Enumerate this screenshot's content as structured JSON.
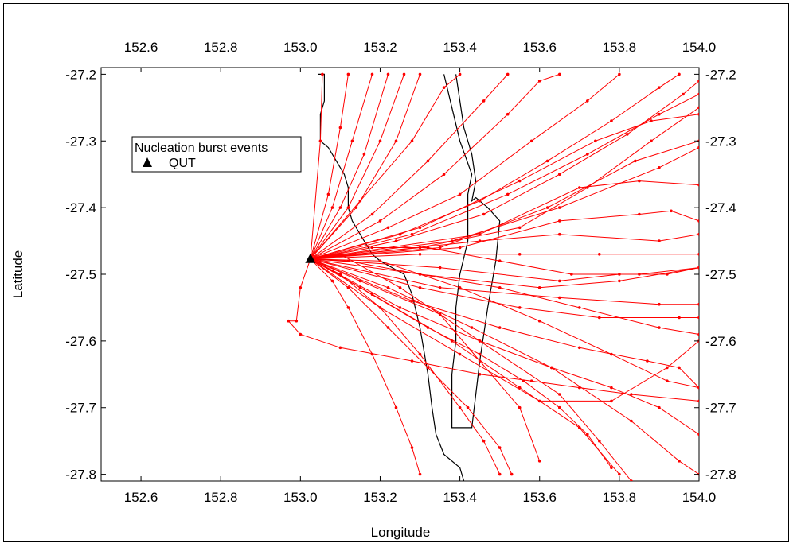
{
  "chart_data": {
    "type": "scatter",
    "xlabel": "Longitude",
    "ylabel": "Latitude",
    "xlim": [
      152.5,
      154.0
    ],
    "ylim": [
      -27.81,
      -27.19
    ],
    "x_ticks": [
      "152.6",
      "152.8",
      "153.0",
      "153.2",
      "153.4",
      "153.6",
      "153.8",
      "154.0"
    ],
    "y_ticks": [
      "-27.2",
      "-27.3",
      "-27.4",
      "-27.5",
      "-27.6",
      "-27.7",
      "-27.8"
    ],
    "x_tick_values": [
      152.6,
      152.8,
      153.0,
      153.2,
      153.4,
      153.6,
      153.8,
      154.0
    ],
    "y_tick_values": [
      -27.2,
      -27.3,
      -27.4,
      -27.5,
      -27.6,
      -27.7,
      -27.8
    ],
    "grid": false,
    "legend": {
      "title": "Nucleation burst events",
      "placement": "top-left",
      "entries": [
        {
          "label": "QUT",
          "marker": "triangle",
          "color": "#000000"
        }
      ]
    },
    "site": {
      "name": "QUT",
      "x": 153.025,
      "y": -27.477
    },
    "colors": {
      "trajectory": "#ff0000",
      "coastline": "#000000",
      "site": "#000000"
    },
    "coastline": [
      [
        [
          153.045,
          -27.2
        ],
        [
          153.06,
          -27.2
        ],
        [
          153.06,
          -27.24
        ],
        [
          153.05,
          -27.26
        ],
        [
          153.05,
          -27.3
        ],
        [
          153.07,
          -27.31
        ],
        [
          153.09,
          -27.33
        ],
        [
          153.11,
          -27.35
        ],
        [
          153.12,
          -27.37
        ],
        [
          153.12,
          -27.4
        ],
        [
          153.13,
          -27.42
        ],
        [
          153.14,
          -27.43
        ],
        [
          153.16,
          -27.45
        ],
        [
          153.18,
          -27.47
        ],
        [
          153.2,
          -27.48
        ],
        [
          153.23,
          -27.49
        ],
        [
          153.26,
          -27.5
        ],
        [
          153.28,
          -27.53
        ],
        [
          153.3,
          -27.58
        ],
        [
          153.32,
          -27.65
        ],
        [
          153.33,
          -27.7
        ],
        [
          153.34,
          -27.74
        ],
        [
          153.36,
          -27.77
        ],
        [
          153.4,
          -27.79
        ],
        [
          153.41,
          -27.81
        ]
      ],
      [
        [
          153.36,
          -27.2
        ],
        [
          153.38,
          -27.25
        ],
        [
          153.4,
          -27.3
        ],
        [
          153.43,
          -27.35
        ],
        [
          153.42,
          -27.38
        ],
        [
          153.42,
          -27.45
        ],
        [
          153.4,
          -27.5
        ],
        [
          153.39,
          -27.55
        ],
        [
          153.39,
          -27.6
        ],
        [
          153.38,
          -27.65
        ],
        [
          153.38,
          -27.7
        ],
        [
          153.38,
          -27.73
        ],
        [
          153.43,
          -27.73
        ],
        [
          153.44,
          -27.68
        ],
        [
          153.45,
          -27.63
        ],
        [
          153.47,
          -27.55
        ],
        [
          153.49,
          -27.48
        ],
        [
          153.5,
          -27.42
        ],
        [
          153.47,
          -27.4
        ],
        [
          153.45,
          -27.39
        ],
        [
          153.44,
          -27.385
        ],
        [
          153.43,
          -27.39
        ],
        [
          153.44,
          -27.36
        ],
        [
          153.43,
          -27.32
        ],
        [
          153.41,
          -27.28
        ],
        [
          153.4,
          -27.24
        ],
        [
          153.39,
          -27.2
        ]
      ]
    ],
    "trajectories": [
      [
        [
          153.025,
          -27.477
        ],
        [
          153.05,
          -27.3
        ],
        [
          153.055,
          -27.2
        ]
      ],
      [
        [
          153.025,
          -27.477
        ],
        [
          153.07,
          -27.38
        ],
        [
          153.1,
          -27.28
        ],
        [
          153.12,
          -27.2
        ]
      ],
      [
        [
          153.025,
          -27.477
        ],
        [
          153.08,
          -27.4
        ],
        [
          153.13,
          -27.3
        ],
        [
          153.18,
          -27.2
        ]
      ],
      [
        [
          153.025,
          -27.477
        ],
        [
          153.1,
          -27.4
        ],
        [
          153.16,
          -27.32
        ],
        [
          153.22,
          -27.2
        ]
      ],
      [
        [
          153.025,
          -27.477
        ],
        [
          153.12,
          -27.4
        ],
        [
          153.2,
          -27.3
        ],
        [
          153.26,
          -27.2
        ]
      ],
      [
        [
          153.025,
          -27.477
        ],
        [
          153.14,
          -27.4
        ],
        [
          153.24,
          -27.3
        ],
        [
          153.3,
          -27.2
        ]
      ],
      [
        [
          153.025,
          -27.477
        ],
        [
          153.15,
          -27.39
        ],
        [
          153.28,
          -27.3
        ],
        [
          153.36,
          -27.22
        ],
        [
          153.4,
          -27.2
        ]
      ],
      [
        [
          153.025,
          -27.477
        ],
        [
          153.18,
          -27.41
        ],
        [
          153.32,
          -27.33
        ],
        [
          153.46,
          -27.24
        ],
        [
          153.52,
          -27.2
        ]
      ],
      [
        [
          153.025,
          -27.477
        ],
        [
          153.2,
          -27.42
        ],
        [
          153.36,
          -27.35
        ],
        [
          153.52,
          -27.26
        ],
        [
          153.6,
          -27.21
        ],
        [
          153.65,
          -27.2
        ]
      ],
      [
        [
          153.025,
          -27.477
        ],
        [
          153.22,
          -27.43
        ],
        [
          153.4,
          -27.38
        ],
        [
          153.58,
          -27.3
        ],
        [
          153.72,
          -27.24
        ],
        [
          153.8,
          -27.2
        ]
      ],
      [
        [
          153.025,
          -27.477
        ],
        [
          153.25,
          -27.44
        ],
        [
          153.45,
          -27.39
        ],
        [
          153.62,
          -27.33
        ],
        [
          153.78,
          -27.27
        ],
        [
          153.9,
          -27.22
        ],
        [
          153.95,
          -27.2
        ]
      ],
      [
        [
          153.025,
          -27.477
        ],
        [
          153.24,
          -27.45
        ],
        [
          153.46,
          -27.41
        ],
        [
          153.65,
          -27.35
        ],
        [
          153.82,
          -27.29
        ],
        [
          153.96,
          -27.23
        ],
        [
          154.0,
          -27.21
        ]
      ],
      [
        [
          153.025,
          -27.477
        ],
        [
          153.28,
          -27.44
        ],
        [
          153.52,
          -27.38
        ],
        [
          153.72,
          -27.32
        ],
        [
          153.9,
          -27.26
        ],
        [
          154.0,
          -27.23
        ]
      ],
      [
        [
          153.025,
          -27.477
        ],
        [
          153.3,
          -27.46
        ],
        [
          153.55,
          -27.43
        ],
        [
          153.72,
          -27.37
        ],
        [
          153.88,
          -27.3
        ],
        [
          154.0,
          -27.25
        ]
      ],
      [
        [
          153.025,
          -27.477
        ],
        [
          153.3,
          -27.43
        ],
        [
          153.55,
          -27.36
        ],
        [
          153.74,
          -27.3
        ],
        [
          153.88,
          -27.27
        ],
        [
          154.0,
          -27.26
        ]
      ],
      [
        [
          153.025,
          -27.477
        ],
        [
          153.35,
          -27.46
        ],
        [
          153.62,
          -27.4
        ],
        [
          153.84,
          -27.33
        ],
        [
          154.0,
          -27.3
        ]
      ],
      [
        [
          153.025,
          -27.477
        ],
        [
          153.38,
          -27.45
        ],
        [
          153.65,
          -27.4
        ],
        [
          153.9,
          -27.34
        ],
        [
          154.0,
          -27.31
        ]
      ],
      [
        [
          153.025,
          -27.477
        ],
        [
          153.45,
          -27.44
        ],
        [
          153.7,
          -27.37
        ],
        [
          153.85,
          -27.36
        ],
        [
          154.0,
          -27.366
        ]
      ],
      [
        [
          153.025,
          -27.477
        ],
        [
          153.4,
          -27.46
        ],
        [
          153.65,
          -27.42
        ],
        [
          153.85,
          -27.41
        ],
        [
          153.93,
          -27.405
        ],
        [
          154.0,
          -27.42
        ]
      ],
      [
        [
          153.025,
          -27.477
        ],
        [
          153.45,
          -27.45
        ],
        [
          153.65,
          -27.44
        ],
        [
          153.9,
          -27.45
        ],
        [
          154.0,
          -27.44
        ]
      ],
      [
        [
          153.025,
          -27.477
        ],
        [
          153.3,
          -27.47
        ],
        [
          153.55,
          -27.47
        ],
        [
          153.75,
          -27.47
        ],
        [
          154.0,
          -27.47
        ]
      ],
      [
        [
          153.025,
          -27.477
        ],
        [
          153.3,
          -27.5
        ],
        [
          153.6,
          -27.52
        ],
        [
          153.8,
          -27.51
        ],
        [
          154.0,
          -27.49
        ]
      ],
      [
        [
          153.025,
          -27.477
        ],
        [
          153.35,
          -27.49
        ],
        [
          153.65,
          -27.51
        ],
        [
          153.8,
          -27.5
        ],
        [
          153.92,
          -27.5
        ],
        [
          154.0,
          -27.49
        ]
      ],
      [
        [
          153.025,
          -27.477
        ],
        [
          153.35,
          -27.52
        ],
        [
          153.65,
          -27.535
        ],
        [
          153.9,
          -27.545
        ],
        [
          154.0,
          -27.545
        ]
      ],
      [
        [
          153.025,
          -27.477
        ],
        [
          153.3,
          -27.52
        ],
        [
          153.55,
          -27.55
        ],
        [
          153.75,
          -27.565
        ],
        [
          153.95,
          -27.565
        ],
        [
          154.0,
          -27.565
        ]
      ],
      [
        [
          153.025,
          -27.477
        ],
        [
          153.28,
          -27.54
        ],
        [
          153.5,
          -27.58
        ],
        [
          153.7,
          -27.61
        ],
        [
          153.87,
          -27.63
        ],
        [
          153.95,
          -27.64
        ],
        [
          154.0,
          -27.67
        ]
      ],
      [
        [
          153.025,
          -27.477
        ],
        [
          153.25,
          -27.55
        ],
        [
          153.45,
          -27.6
        ],
        [
          153.63,
          -27.64
        ],
        [
          153.78,
          -27.67
        ],
        [
          153.9,
          -27.7
        ],
        [
          154.0,
          -27.74
        ]
      ],
      [
        [
          153.025,
          -27.477
        ],
        [
          153.2,
          -27.55
        ],
        [
          153.4,
          -27.62
        ],
        [
          153.6,
          -27.69
        ],
        [
          153.78,
          -27.69
        ],
        [
          153.92,
          -27.64
        ],
        [
          154.0,
          -27.6
        ]
      ],
      [
        [
          153.025,
          -27.477
        ],
        [
          153.22,
          -27.52
        ],
        [
          153.43,
          -27.58
        ],
        [
          153.63,
          -27.64
        ],
        [
          153.83,
          -27.72
        ],
        [
          153.95,
          -27.78
        ],
        [
          154.0,
          -27.8
        ]
      ],
      [
        [
          153.025,
          -27.477
        ],
        [
          153.18,
          -27.53
        ],
        [
          153.38,
          -27.6
        ],
        [
          153.55,
          -27.67
        ],
        [
          153.7,
          -27.73
        ],
        [
          153.8,
          -27.8
        ]
      ],
      [
        [
          153.025,
          -27.477
        ],
        [
          153.15,
          -27.52
        ],
        [
          153.32,
          -27.58
        ],
        [
          153.45,
          -27.62
        ],
        [
          153.56,
          -27.66
        ],
        [
          153.65,
          -27.7
        ],
        [
          153.72,
          -27.74
        ],
        [
          153.78,
          -27.79
        ]
      ],
      [
        [
          153.025,
          -27.477
        ],
        [
          153.15,
          -27.51
        ],
        [
          153.35,
          -27.56
        ],
        [
          153.45,
          -27.63
        ],
        [
          153.55,
          -27.7
        ],
        [
          153.6,
          -27.78
        ]
      ],
      [
        [
          153.025,
          -27.477
        ],
        [
          153.12,
          -27.52
        ],
        [
          153.22,
          -27.58
        ],
        [
          153.32,
          -27.64
        ],
        [
          153.42,
          -27.7
        ],
        [
          153.5,
          -27.76
        ],
        [
          153.53,
          -27.8
        ]
      ],
      [
        [
          153.025,
          -27.477
        ],
        [
          153.1,
          -27.5
        ],
        [
          153.2,
          -27.55
        ],
        [
          153.3,
          -27.62
        ],
        [
          153.4,
          -27.7
        ],
        [
          153.46,
          -27.75
        ],
        [
          153.5,
          -27.8
        ]
      ],
      [
        [
          153.025,
          -27.477
        ],
        [
          153.08,
          -27.51
        ],
        [
          153.12,
          -27.55
        ],
        [
          153.18,
          -27.62
        ],
        [
          153.24,
          -27.7
        ],
        [
          153.28,
          -27.76
        ],
        [
          153.3,
          -27.8
        ]
      ],
      [
        [
          153.025,
          -27.477
        ],
        [
          153.0,
          -27.52
        ],
        [
          152.99,
          -27.57
        ],
        [
          152.97,
          -27.57
        ],
        [
          153.0,
          -27.59
        ],
        [
          153.1,
          -27.61
        ],
        [
          153.28,
          -27.63
        ],
        [
          153.45,
          -27.65
        ],
        [
          153.58,
          -27.66
        ],
        [
          153.7,
          -27.67
        ],
        [
          153.83,
          -27.68
        ],
        [
          154.0,
          -27.69
        ]
      ],
      [
        [
          153.025,
          -27.477
        ],
        [
          153.1,
          -27.47
        ],
        [
          153.25,
          -27.52
        ],
        [
          153.45,
          -27.6
        ],
        [
          153.65,
          -27.68
        ],
        [
          153.75,
          -27.75
        ],
        [
          153.83,
          -27.81
        ]
      ],
      [
        [
          153.025,
          -27.477
        ],
        [
          153.12,
          -27.48
        ],
        [
          153.3,
          -27.5
        ],
        [
          153.5,
          -27.52
        ],
        [
          153.7,
          -27.55
        ],
        [
          153.9,
          -27.58
        ],
        [
          154.0,
          -27.59
        ]
      ],
      [
        [
          153.025,
          -27.477
        ],
        [
          153.18,
          -27.46
        ],
        [
          153.32,
          -27.46
        ],
        [
          153.5,
          -27.48
        ],
        [
          153.68,
          -27.5
        ],
        [
          153.85,
          -27.5
        ],
        [
          154.0,
          -27.49
        ]
      ],
      [
        [
          153.025,
          -27.477
        ],
        [
          153.2,
          -27.48
        ],
        [
          153.4,
          -27.52
        ],
        [
          153.6,
          -27.57
        ],
        [
          153.78,
          -27.62
        ],
        [
          153.92,
          -27.66
        ],
        [
          154.0,
          -27.67
        ]
      ]
    ]
  }
}
